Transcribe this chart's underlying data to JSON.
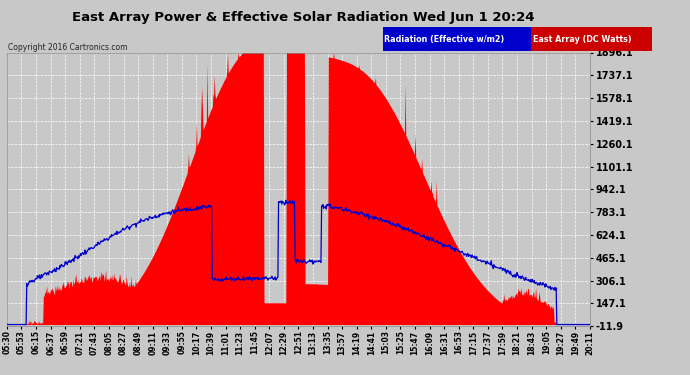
{
  "title": "East Array Power & Effective Solar Radiation Wed Jun 1 20:24",
  "copyright": "Copyright 2016 Cartronics.com",
  "legend_radiation": "Radiation (Effective w/m2)",
  "legend_east": "East Array (DC Watts)",
  "yticks": [
    -11.9,
    147.1,
    306.1,
    465.1,
    624.1,
    783.1,
    942.1,
    1101.1,
    1260.1,
    1419.1,
    1578.1,
    1737.1,
    1896.1
  ],
  "ymin": -11.9,
  "ymax": 1896.1,
  "bg_color": "#c8c8c8",
  "plot_bg_color": "#c8c8c8",
  "bar_color": "#ff0000",
  "line_color": "#0000cc",
  "title_color": "#000000",
  "grid_color": "#ffffff",
  "xtick_labels": [
    "05:30",
    "05:53",
    "06:15",
    "06:37",
    "06:59",
    "07:21",
    "07:43",
    "08:05",
    "08:27",
    "08:49",
    "09:11",
    "09:33",
    "09:55",
    "10:17",
    "10:39",
    "11:01",
    "11:23",
    "11:45",
    "12:07",
    "12:29",
    "12:51",
    "13:13",
    "13:35",
    "13:57",
    "14:19",
    "14:41",
    "15:03",
    "15:25",
    "15:47",
    "16:09",
    "16:31",
    "16:53",
    "17:15",
    "17:37",
    "17:59",
    "18:21",
    "18:43",
    "19:05",
    "19:27",
    "19:49",
    "20:11"
  ]
}
